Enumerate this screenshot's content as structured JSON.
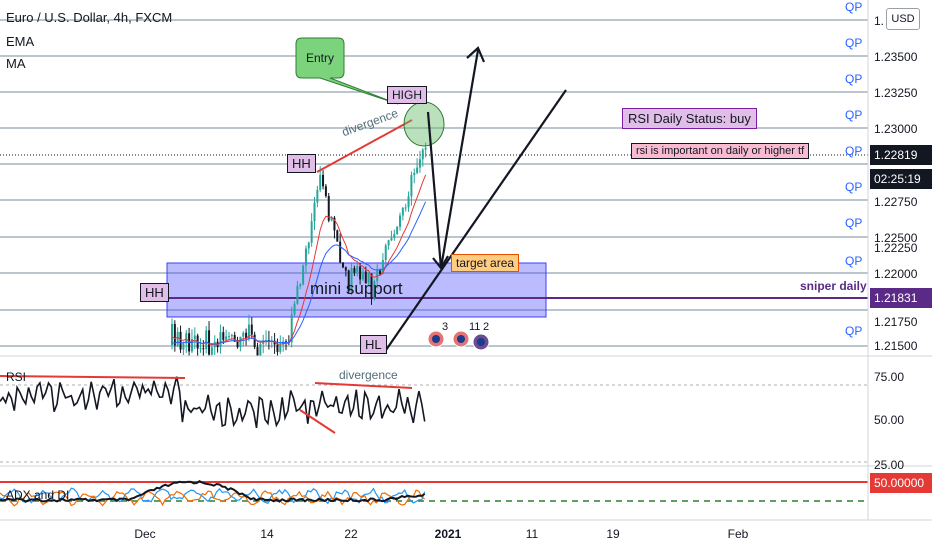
{
  "header": {
    "symbol": "Euro / U.S. Dollar, 4h, FXCM",
    "indicators": [
      "EMA",
      "MA"
    ],
    "currency_button": "USD"
  },
  "price_axis": {
    "qp_label": "QP",
    "ticks": [
      "1.23500",
      "1.23250",
      "1.23000",
      "1.22750",
      "1.22500",
      "1.22250",
      "1.22000",
      "1.21750",
      "1.21500"
    ],
    "top_partial": "1.",
    "current_price": "1.22819",
    "countdown": "02:25:19",
    "sniper_price": "1.21831"
  },
  "annotations": {
    "entry": "Entry",
    "high": "HIGH",
    "hh_top": "HH",
    "hh_left": "HH",
    "hl": "HL",
    "divergence_price": "divergence",
    "divergence_rsi": "divergence",
    "target": "target area",
    "mini_support": "mini support",
    "rsi_status": "RSI Daily Status: buy",
    "rsi_note": "rsi is important on daily or higher tf",
    "sniper": "sniper daily",
    "events": [
      "3",
      "11",
      "2"
    ]
  },
  "rsi_pane": {
    "label": "RSI",
    "ticks": [
      "75.00",
      "50.00",
      "25.00"
    ]
  },
  "adx_pane": {
    "label": "ADX and DI",
    "value": "50.00000"
  },
  "time_axis": [
    "Dec",
    "14",
    "22",
    "2021",
    "11",
    "19",
    "Feb"
  ],
  "colors": {
    "up": "#26a69a",
    "down": "#131722",
    "ema": "#e53935",
    "ma": "#2962ff",
    "qp_line": "#90a4ae",
    "zone": "#3d3dff",
    "sniper": "#5b2a86",
    "accent": "#2962ff"
  }
}
